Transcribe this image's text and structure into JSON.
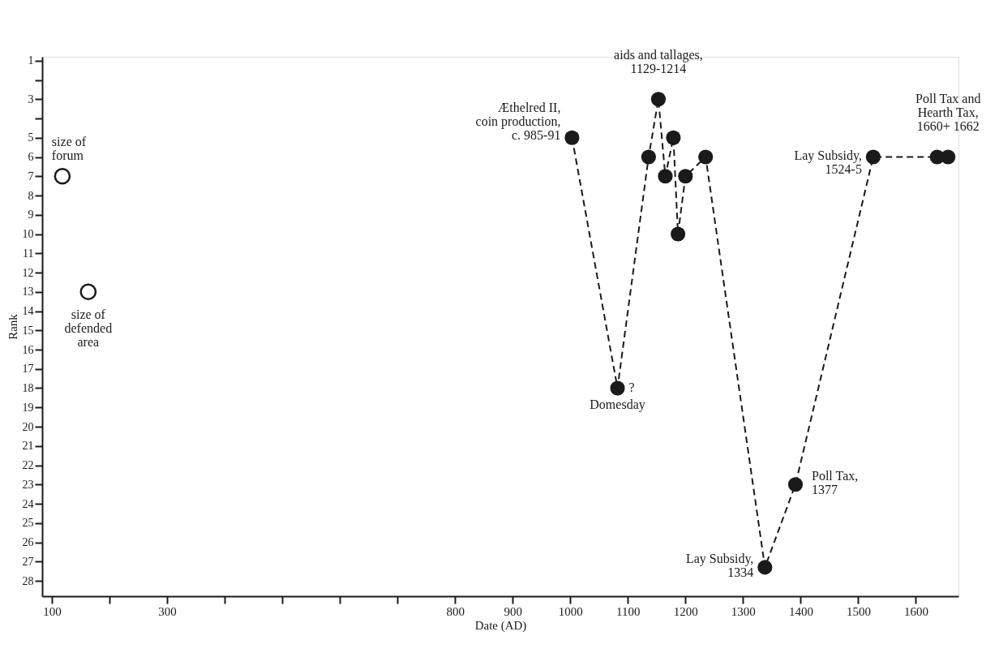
{
  "chart_data": {
    "type": "line",
    "xlabel": "Date (AD)",
    "ylabel": "Rank",
    "xlim": [
      83,
      1674
    ],
    "ylim": [
      28.8,
      0.8
    ],
    "xticks": [
      100,
      {
        "value": 200,
        "label": null
      },
      300,
      {
        "value": 400,
        "label": null
      },
      {
        "value": 500,
        "label": null
      },
      {
        "value": 600,
        "label": null
      },
      {
        "value": 700,
        "label": null
      },
      800,
      900,
      1000,
      1100,
      1200,
      1300,
      1400,
      1500,
      1600
    ],
    "yticks": [
      1,
      {
        "value": 2,
        "label": null
      },
      3,
      {
        "value": 4,
        "label": null
      },
      5,
      6,
      7,
      8,
      9,
      10,
      11,
      12,
      13,
      14,
      15,
      16,
      17,
      18,
      19,
      20,
      21,
      22,
      23,
      24,
      25,
      26,
      27,
      28
    ],
    "grid": false,
    "series": [
      {
        "type": "scatter",
        "marker": "circle",
        "color": "#1a1a1a",
        "x": [
          118,
          163
        ],
        "values": [
          7,
          13
        ]
      },
      {
        "type": "line",
        "marker": "circle",
        "line_style": "dashed",
        "color": "#1a1a1a",
        "x": [
          1003,
          1082,
          1136,
          1153,
          1165,
          1179,
          1187,
          1200,
          1235,
          1338,
          1391,
          1526,
          1637,
          1656
        ],
        "values": [
          5,
          18,
          6,
          3,
          7,
          5,
          10,
          7,
          6,
          27.3,
          23,
          6,
          6,
          6
        ]
      }
    ],
    "annotations": [
      {
        "text": "size of\nforum",
        "x": 118,
        "y": 7
      },
      {
        "text": "size of\ndefended\narea",
        "x": 163,
        "y": 13
      },
      {
        "text": "Æthelred II,\ncoin production,\nc. 985-91",
        "x": 1003,
        "y": 5
      },
      {
        "text": "aids and tallages,\n1129-1214",
        "x": 1153,
        "y": 3
      },
      {
        "text": "?",
        "x": 1082,
        "y": 18
      },
      {
        "text": "Domesday",
        "x": 1082,
        "y": 18
      },
      {
        "text": "Lay Subsidy,\n1334",
        "x": 1338,
        "y": 27.3
      },
      {
        "text": "Poll Tax,\n1377",
        "x": 1391,
        "y": 23
      },
      {
        "text": "Lay Subsidy,\n1524-5",
        "x": 1526,
        "y": 6
      },
      {
        "text": "Poll Tax and\nHearth Tax,\n1660+ 1662",
        "x": 1656,
        "y": 6
      }
    ]
  }
}
